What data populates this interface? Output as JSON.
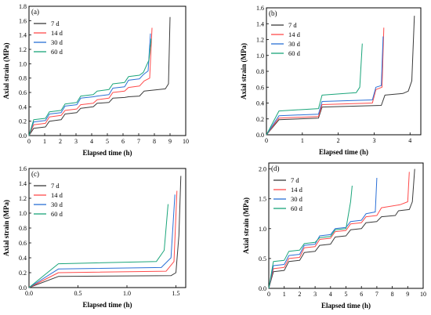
{
  "colors": {
    "7 d": "#3a3a3a",
    "14 d": "#ff4a4a",
    "30 d": "#2a6fd6",
    "60 d": "#1aa57a"
  },
  "chart_data": [
    {
      "type": "line",
      "panel": "(a)",
      "xlabel": "Elapsed time (h)",
      "ylabel": "Axial strain (MPa)",
      "xlim": [
        0,
        10
      ],
      "ylim": [
        0,
        1.8
      ],
      "xticks": [
        "0",
        "1",
        "2",
        "3",
        "4",
        "5",
        "6",
        "7",
        "8",
        "9",
        "10"
      ],
      "yticks": [
        "0.0",
        "0.2",
        "0.4",
        "0.6",
        "0.8",
        "1.0",
        "1.2",
        "1.4",
        "1.6",
        "1.8"
      ],
      "legend_position": "top-left",
      "series": [
        {
          "name": "7 d",
          "points": [
            [
              0,
              0
            ],
            [
              0.3,
              0.1
            ],
            [
              1.05,
              0.12
            ],
            [
              1.3,
              0.2
            ],
            [
              2.05,
              0.22
            ],
            [
              2.3,
              0.3
            ],
            [
              3.05,
              0.32
            ],
            [
              3.3,
              0.38
            ],
            [
              4.1,
              0.4
            ],
            [
              4.35,
              0.45
            ],
            [
              5.1,
              0.46
            ],
            [
              5.35,
              0.52
            ],
            [
              6.1,
              0.53
            ],
            [
              6.35,
              0.54
            ],
            [
              7.05,
              0.55
            ],
            [
              7.35,
              0.62
            ],
            [
              8.7,
              0.65
            ],
            [
              8.9,
              0.72
            ],
            [
              9.0,
              1.65
            ]
          ]
        },
        {
          "name": "14 d",
          "points": [
            [
              0,
              0
            ],
            [
              0.3,
              0.15
            ],
            [
              1.05,
              0.17
            ],
            [
              1.3,
              0.26
            ],
            [
              2.05,
              0.28
            ],
            [
              2.3,
              0.35
            ],
            [
              3.05,
              0.37
            ],
            [
              3.3,
              0.43
            ],
            [
              4.1,
              0.45
            ],
            [
              4.35,
              0.5
            ],
            [
              5.1,
              0.52
            ],
            [
              5.35,
              0.6
            ],
            [
              6.1,
              0.62
            ],
            [
              6.35,
              0.67
            ],
            [
              7.05,
              0.69
            ],
            [
              7.35,
              0.76
            ],
            [
              7.7,
              0.8
            ],
            [
              7.85,
              1.5
            ]
          ]
        },
        {
          "name": "30 d",
          "points": [
            [
              0,
              0
            ],
            [
              0.3,
              0.19
            ],
            [
              1.05,
              0.21
            ],
            [
              1.3,
              0.3
            ],
            [
              2.05,
              0.32
            ],
            [
              2.3,
              0.41
            ],
            [
              3.05,
              0.43
            ],
            [
              3.3,
              0.52
            ],
            [
              4.1,
              0.54
            ],
            [
              4.35,
              0.55
            ],
            [
              5.1,
              0.57
            ],
            [
              5.35,
              0.66
            ],
            [
              6.1,
              0.68
            ],
            [
              6.35,
              0.77
            ],
            [
              7.05,
              0.79
            ],
            [
              7.3,
              0.85
            ],
            [
              7.6,
              0.9
            ],
            [
              7.75,
              1.42
            ]
          ]
        },
        {
          "name": "60 d",
          "points": [
            [
              0,
              0
            ],
            [
              0.3,
              0.22
            ],
            [
              1.05,
              0.24
            ],
            [
              1.3,
              0.33
            ],
            [
              2.05,
              0.35
            ],
            [
              2.3,
              0.44
            ],
            [
              3.05,
              0.46
            ],
            [
              3.3,
              0.55
            ],
            [
              4.1,
              0.57
            ],
            [
              4.35,
              0.62
            ],
            [
              5.1,
              0.64
            ],
            [
              5.35,
              0.72
            ],
            [
              6.1,
              0.74
            ],
            [
              6.35,
              0.82
            ],
            [
              7.05,
              0.84
            ],
            [
              7.3,
              0.88
            ],
            [
              7.65,
              1.05
            ],
            [
              7.8,
              1.35
            ]
          ]
        }
      ]
    },
    {
      "type": "line",
      "panel": "(b)",
      "xlabel": "Elapsed time (h)",
      "ylabel": "Axial strain (MPa)",
      "xlim": [
        0,
        4.3
      ],
      "ylim": [
        0,
        1.6
      ],
      "xticks": [
        "0",
        "1",
        "2",
        "3",
        "4"
      ],
      "xtick_values": [
        0,
        1,
        2,
        3,
        4
      ],
      "yticks": [
        "0.0",
        "0.2",
        "0.4",
        "0.6",
        "0.8",
        "1.0",
        "1.2",
        "1.4",
        "1.6"
      ],
      "legend_position": "top-left",
      "series": [
        {
          "name": "7 d",
          "points": [
            [
              0,
              0
            ],
            [
              0.35,
              0.19
            ],
            [
              1.45,
              0.21
            ],
            [
              1.55,
              0.35
            ],
            [
              3.2,
              0.37
            ],
            [
              3.3,
              0.5
            ],
            [
              3.8,
              0.52
            ],
            [
              3.95,
              0.55
            ],
            [
              4.05,
              0.68
            ],
            [
              4.12,
              1.5
            ]
          ]
        },
        {
          "name": "14 d",
          "points": [
            [
              0,
              0
            ],
            [
              0.35,
              0.21
            ],
            [
              1.45,
              0.23
            ],
            [
              1.55,
              0.38
            ],
            [
              2.95,
              0.4
            ],
            [
              3.05,
              0.57
            ],
            [
              3.22,
              0.6
            ],
            [
              3.27,
              1.35
            ]
          ]
        },
        {
          "name": "30 d",
          "points": [
            [
              0,
              0
            ],
            [
              0.35,
              0.24
            ],
            [
              1.45,
              0.26
            ],
            [
              1.55,
              0.42
            ],
            [
              2.95,
              0.44
            ],
            [
              3.05,
              0.6
            ],
            [
              3.2,
              0.62
            ],
            [
              3.25,
              1.24
            ]
          ]
        },
        {
          "name": "60 d",
          "points": [
            [
              0,
              0
            ],
            [
              0.35,
              0.3
            ],
            [
              1.45,
              0.33
            ],
            [
              1.55,
              0.5
            ],
            [
              2.5,
              0.53
            ],
            [
              2.6,
              0.6
            ],
            [
              2.67,
              1.15
            ]
          ]
        }
      ]
    },
    {
      "type": "line",
      "panel": "(c)",
      "xlabel": "Elapsed time (h)",
      "ylabel": "Axial strain (MPa)",
      "xlim": [
        0,
        1.6
      ],
      "ylim": [
        0,
        1.6
      ],
      "xticks": [
        "0.0",
        "0.5",
        "1.0",
        "1.5"
      ],
      "xtick_values": [
        0,
        0.5,
        1.0,
        1.5
      ],
      "yticks": [
        "0.0",
        "0.2",
        "0.4",
        "0.6",
        "0.8",
        "1.0",
        "1.2",
        "1.4",
        "1.6"
      ],
      "legend_position": "top-left",
      "series": [
        {
          "name": "7 d",
          "points": [
            [
              0,
              0
            ],
            [
              0.3,
              0.15
            ],
            [
              1.45,
              0.16
            ],
            [
              1.5,
              0.2
            ],
            [
              1.53,
              0.7
            ],
            [
              1.55,
              1.5
            ]
          ]
        },
        {
          "name": "14 d",
          "points": [
            [
              0,
              0
            ],
            [
              0.3,
              0.2
            ],
            [
              1.4,
              0.22
            ],
            [
              1.48,
              0.35
            ],
            [
              1.51,
              1.3
            ]
          ]
        },
        {
          "name": "30 d",
          "points": [
            [
              0,
              0
            ],
            [
              0.3,
              0.25
            ],
            [
              1.35,
              0.27
            ],
            [
              1.45,
              0.4
            ],
            [
              1.49,
              1.25
            ]
          ]
        },
        {
          "name": "60 d",
          "points": [
            [
              0,
              0
            ],
            [
              0.3,
              0.32
            ],
            [
              1.3,
              0.35
            ],
            [
              1.38,
              0.5
            ],
            [
              1.42,
              1.12
            ]
          ]
        }
      ]
    },
    {
      "type": "line",
      "panel": "(d)",
      "xlabel": "Elapsed time (h)",
      "ylabel": "Axial strain (MPa)",
      "xlim": [
        0,
        10
      ],
      "ylim": [
        0,
        2.1
      ],
      "xticks": [
        "0",
        "1",
        "2",
        "3",
        "4",
        "5",
        "6",
        "7",
        "8",
        "9",
        "10"
      ],
      "yticks": [
        "0.0",
        "0.5",
        "1.0",
        "1.5",
        "2.0"
      ],
      "ytick_values": [
        0,
        0.5,
        1.0,
        1.5,
        2.0
      ],
      "legend_position": "top-left",
      "series": [
        {
          "name": "7 d",
          "points": [
            [
              0,
              0
            ],
            [
              0.3,
              0.28
            ],
            [
              1.0,
              0.3
            ],
            [
              1.3,
              0.45
            ],
            [
              2.0,
              0.47
            ],
            [
              2.3,
              0.6
            ],
            [
              3.0,
              0.62
            ],
            [
              3.3,
              0.72
            ],
            [
              4.0,
              0.74
            ],
            [
              4.3,
              0.86
            ],
            [
              5.0,
              0.88
            ],
            [
              5.3,
              0.98
            ],
            [
              6.0,
              1.0
            ],
            [
              6.3,
              1.1
            ],
            [
              7.0,
              1.12
            ],
            [
              7.3,
              1.2
            ],
            [
              8.2,
              1.22
            ],
            [
              8.4,
              1.3
            ],
            [
              9.1,
              1.32
            ],
            [
              9.3,
              1.45
            ],
            [
              9.45,
              2.0
            ]
          ]
        },
        {
          "name": "14 d",
          "points": [
            [
              0,
              0
            ],
            [
              0.3,
              0.33
            ],
            [
              1.0,
              0.35
            ],
            [
              1.3,
              0.5
            ],
            [
              2.0,
              0.52
            ],
            [
              2.3,
              0.68
            ],
            [
              3.0,
              0.7
            ],
            [
              3.3,
              0.82
            ],
            [
              4.0,
              0.84
            ],
            [
              4.3,
              0.95
            ],
            [
              5.0,
              0.97
            ],
            [
              5.3,
              1.08
            ],
            [
              6.0,
              1.1
            ],
            [
              6.3,
              1.2
            ],
            [
              7.0,
              1.22
            ],
            [
              7.3,
              1.35
            ],
            [
              8.5,
              1.4
            ],
            [
              9.0,
              1.45
            ],
            [
              9.1,
              1.95
            ]
          ]
        },
        {
          "name": "30 d",
          "points": [
            [
              0,
              0
            ],
            [
              0.3,
              0.38
            ],
            [
              1.0,
              0.4
            ],
            [
              1.3,
              0.55
            ],
            [
              2.0,
              0.57
            ],
            [
              2.3,
              0.72
            ],
            [
              3.0,
              0.74
            ],
            [
              3.3,
              0.88
            ],
            [
              4.0,
              0.9
            ],
            [
              4.3,
              1.0
            ],
            [
              5.0,
              1.02
            ],
            [
              5.3,
              1.12
            ],
            [
              6.0,
              1.14
            ],
            [
              6.3,
              1.25
            ],
            [
              6.9,
              1.28
            ],
            [
              7.0,
              1.85
            ]
          ]
        },
        {
          "name": "60 d",
          "points": [
            [
              0,
              0
            ],
            [
              0.3,
              0.45
            ],
            [
              1.0,
              0.47
            ],
            [
              1.3,
              0.62
            ],
            [
              2.0,
              0.64
            ],
            [
              2.3,
              0.75
            ],
            [
              3.0,
              0.77
            ],
            [
              3.3,
              0.85
            ],
            [
              4.0,
              0.87
            ],
            [
              4.3,
              0.98
            ],
            [
              5.0,
              1.0
            ],
            [
              5.3,
              1.45
            ],
            [
              5.4,
              1.72
            ]
          ]
        }
      ]
    }
  ]
}
